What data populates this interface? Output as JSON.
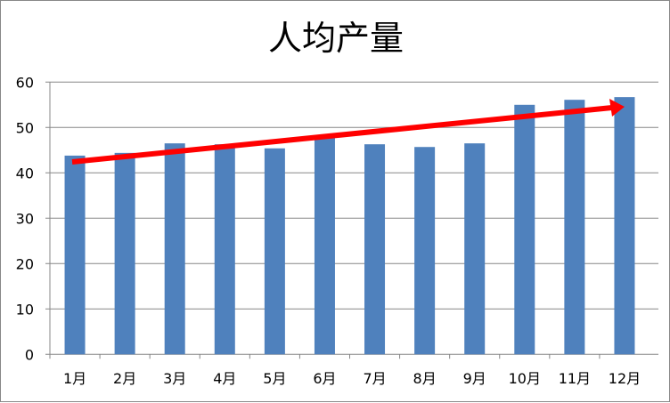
{
  "chart_data": {
    "type": "bar",
    "title": "人均产量",
    "categories": [
      "1月",
      "2月",
      "3月",
      "4月",
      "5月",
      "6月",
      "7月",
      "8月",
      "9月",
      "10月",
      "11月",
      "12月"
    ],
    "values": [
      43.8,
      44.4,
      46.5,
      46.3,
      45.4,
      47.8,
      46.3,
      45.7,
      46.5,
      55.0,
      56.1,
      56.7
    ],
    "ylim": [
      0,
      60
    ],
    "yticks": [
      0,
      10,
      20,
      30,
      40,
      50,
      60
    ],
    "xlabel": "",
    "ylabel": "",
    "grid": true,
    "legend": "none",
    "bar_color": "#4F81BD",
    "annotation": {
      "type": "trend-arrow",
      "color": "#FF0000"
    }
  }
}
